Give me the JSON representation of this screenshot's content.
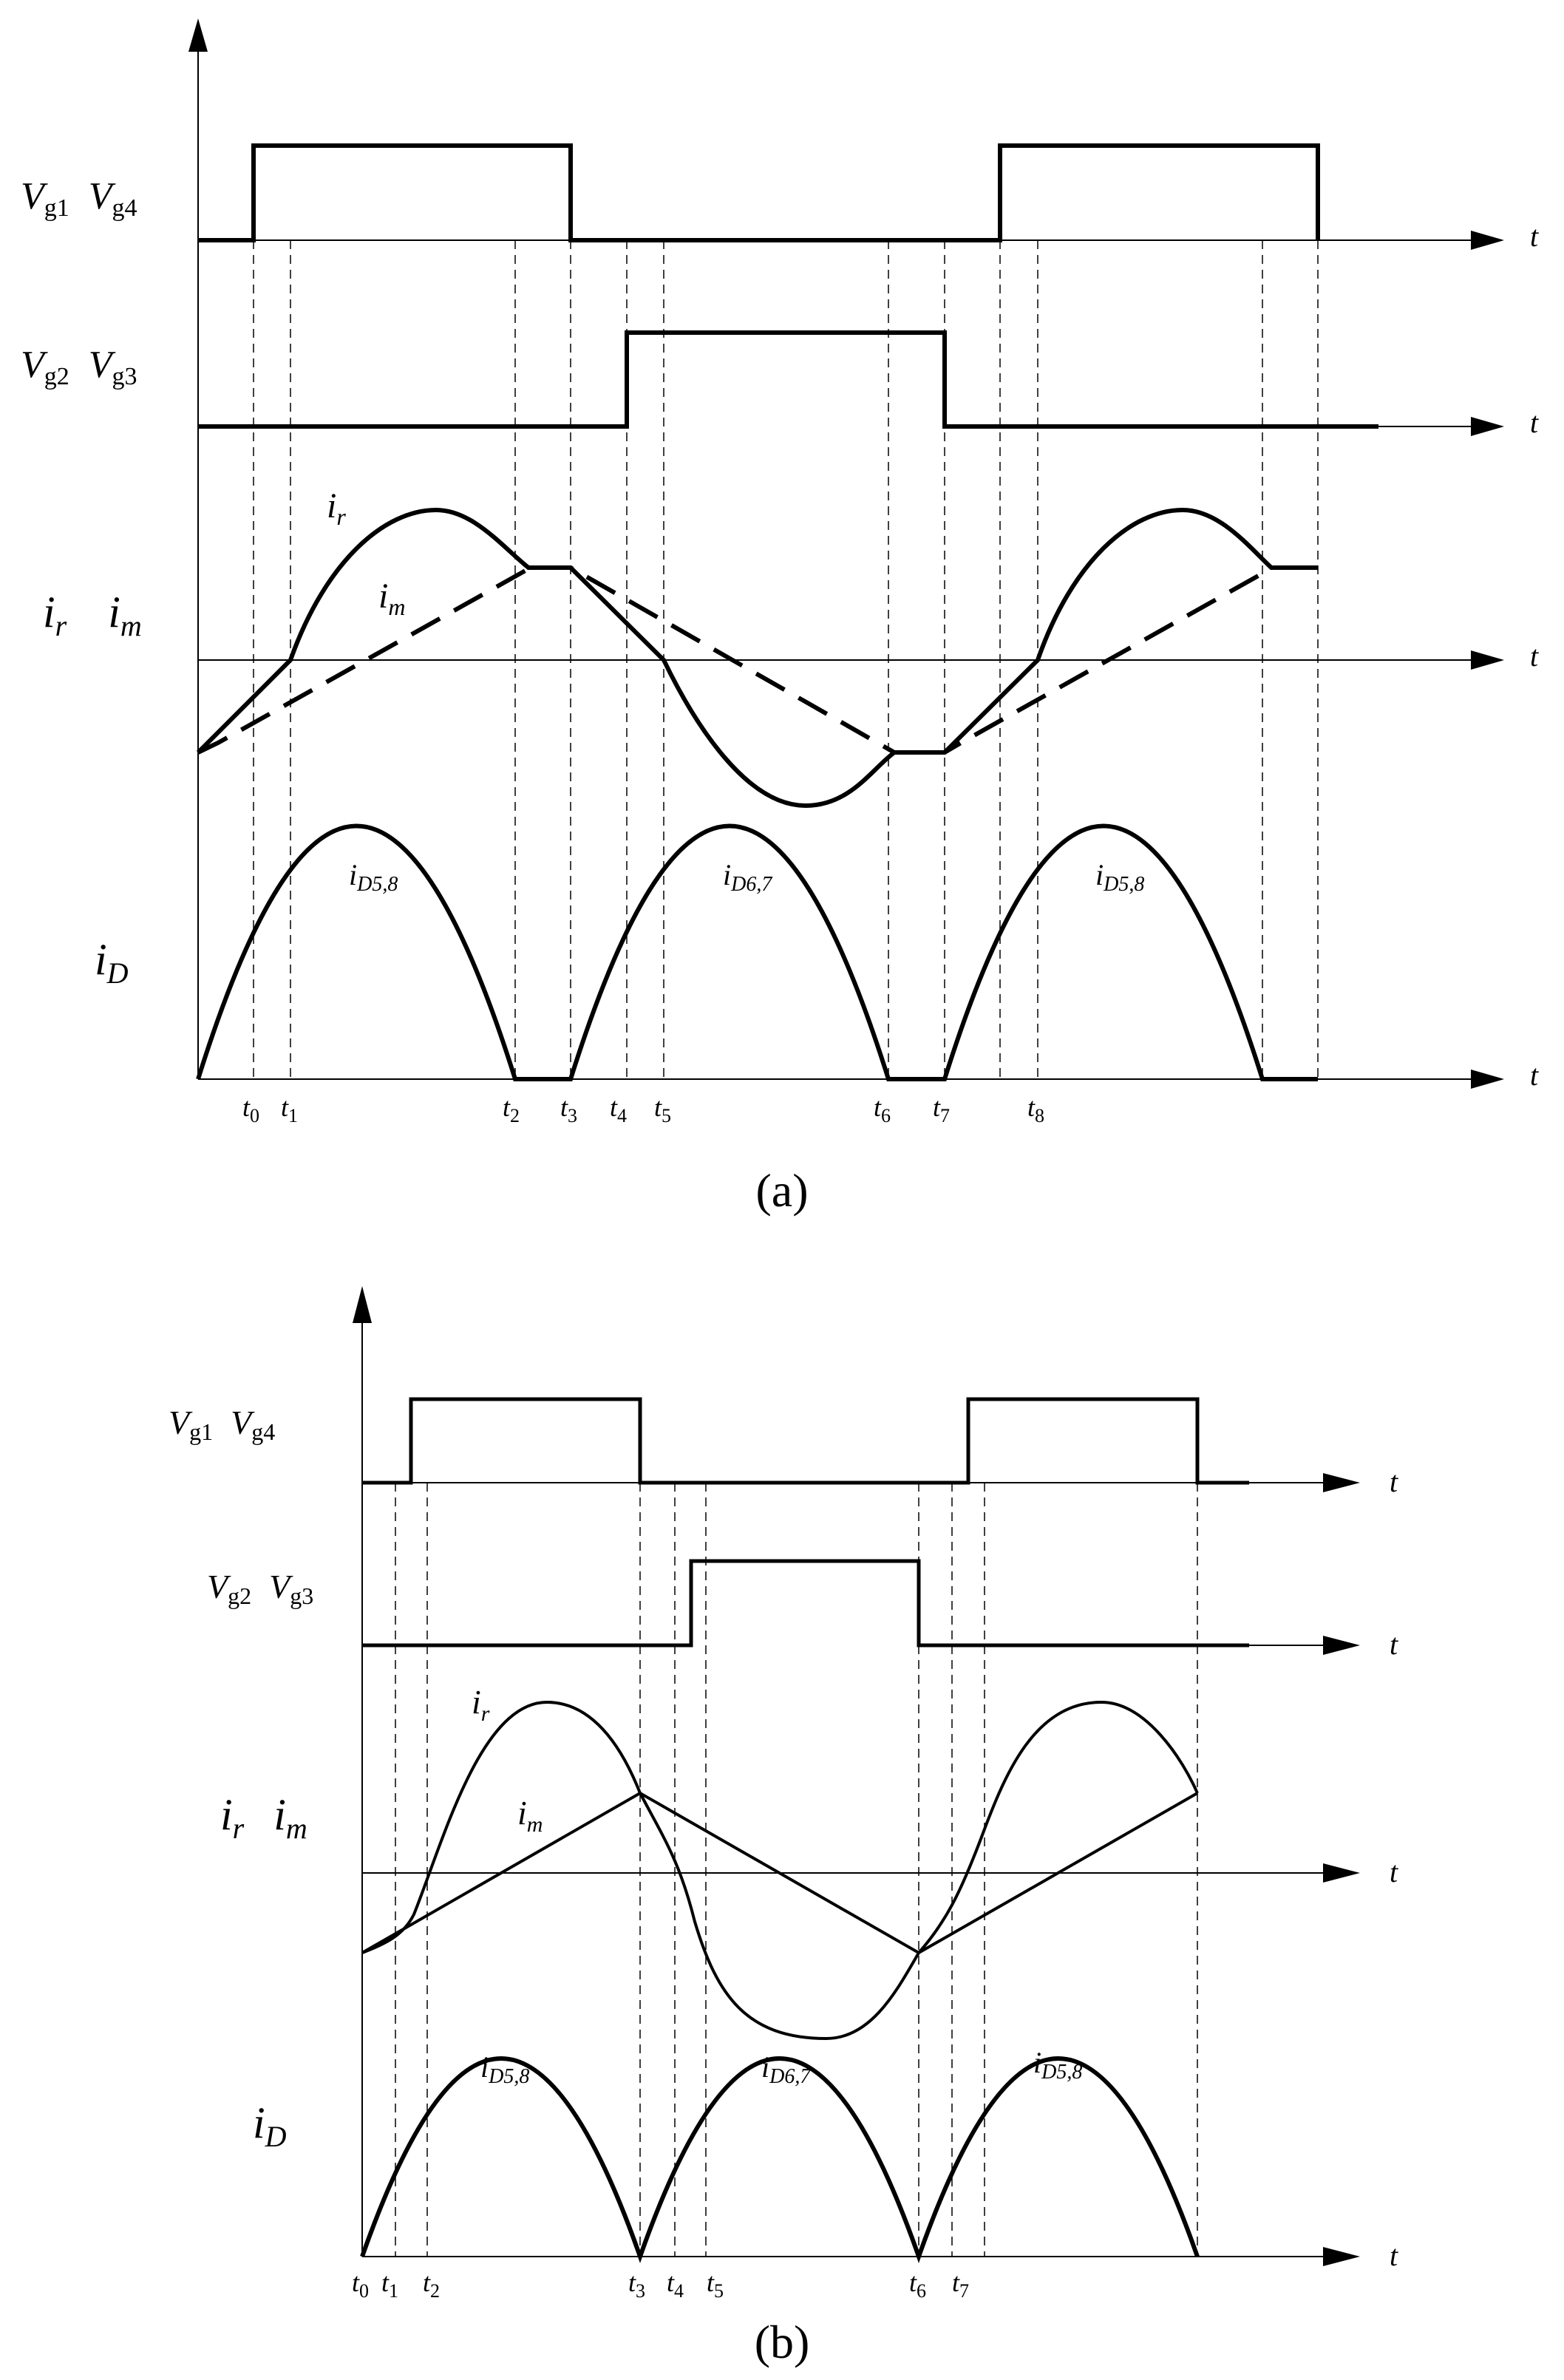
{
  "panel_a": {
    "caption": "(a)",
    "signal_labels": {
      "vg14": {
        "main1": "V",
        "sub1": "g1",
        "main2": "V",
        "sub2": "g4"
      },
      "vg23": {
        "main1": "V",
        "sub1": "g2",
        "main2": "V",
        "sub2": "g3"
      },
      "irim": {
        "main1": "i",
        "sub1": "r",
        "main2": "i",
        "sub2": "m"
      },
      "id": {
        "main": "i",
        "sub": "D"
      }
    },
    "axis_label": "t",
    "curve_labels": [
      {
        "main": "i",
        "sub": "r"
      },
      {
        "main": "i",
        "sub": "m"
      },
      {
        "main": "i",
        "sub": "D5,8"
      },
      {
        "main": "i",
        "sub": "D6,7"
      },
      {
        "main": "i",
        "sub": "D5,8"
      }
    ],
    "time_labels": [
      {
        "main": "t",
        "sub": "0"
      },
      {
        "main": "t",
        "sub": "1"
      },
      {
        "main": "t",
        "sub": "2"
      },
      {
        "main": "t",
        "sub": "3"
      },
      {
        "main": "t",
        "sub": "4"
      },
      {
        "main": "t",
        "sub": "5"
      },
      {
        "main": "t",
        "sub": "6"
      },
      {
        "main": "t",
        "sub": "7"
      },
      {
        "main": "t",
        "sub": "8"
      }
    ]
  },
  "panel_b": {
    "caption": "(b)",
    "signal_labels": {
      "vg14": {
        "main1": "V",
        "sub1": "g1",
        "main2": "V",
        "sub2": "g4"
      },
      "vg23": {
        "main1": "V",
        "sub1": "g2",
        "main2": "V",
        "sub2": "g3"
      },
      "irim": {
        "main1": "i",
        "sub1": "r",
        "main2": "i",
        "sub2": "m"
      },
      "id": {
        "main": "i",
        "sub": "D"
      }
    },
    "axis_label": "t",
    "curve_labels": [
      {
        "main": "i",
        "sub": "r"
      },
      {
        "main": "i",
        "sub": "m"
      },
      {
        "main": "i",
        "sub": "D5,8"
      },
      {
        "main": "i",
        "sub": "D6,7"
      },
      {
        "main": "i",
        "sub": "D5,8"
      }
    ],
    "time_labels": [
      {
        "main": "t",
        "sub": "0"
      },
      {
        "main": "t",
        "sub": "1"
      },
      {
        "main": "t",
        "sub": "2"
      },
      {
        "main": "t",
        "sub": "3"
      },
      {
        "main": "t",
        "sub": "4"
      },
      {
        "main": "t",
        "sub": "5"
      },
      {
        "main": "t",
        "sub": "6"
      },
      {
        "main": "t",
        "sub": "7"
      }
    ]
  }
}
